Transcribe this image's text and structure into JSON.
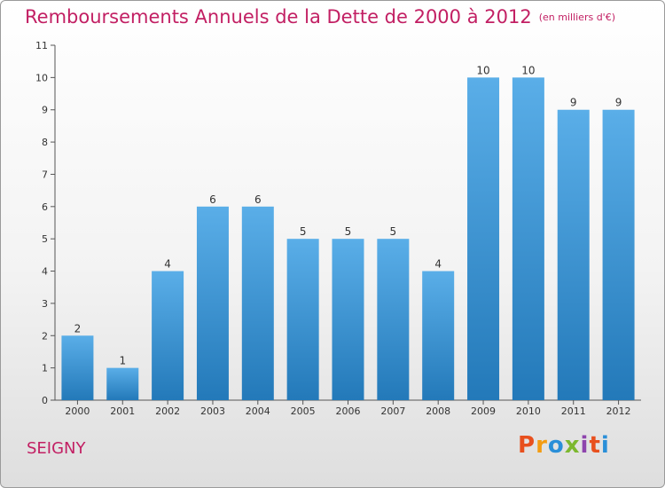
{
  "title": "Remboursements Annuels de la Dette de 2000 à 2012",
  "unit": "(en milliers d'€)",
  "commune": "SEIGNY",
  "logo": {
    "text": "Proxiti",
    "colors": [
      "#e8501e",
      "#f39c12",
      "#2a8fd8",
      "#7cb82f",
      "#8e44ad",
      "#e8501e",
      "#2a8fd8"
    ]
  },
  "colors": {
    "title": "#c21f63",
    "bar_top": "#5aaee8",
    "bar_bottom": "#2379b9"
  },
  "chart_data": {
    "type": "bar",
    "categories": [
      "2000",
      "2001",
      "2002",
      "2003",
      "2004",
      "2005",
      "2006",
      "2007",
      "2008",
      "2009",
      "2010",
      "2011",
      "2012"
    ],
    "values": [
      2,
      1,
      4,
      6,
      6,
      5,
      5,
      5,
      4,
      10,
      10,
      9,
      9
    ],
    "title": "Remboursements Annuels de la Dette de 2000 à 2012",
    "ylabel": "",
    "xlabel": "",
    "ylim": [
      0,
      11
    ],
    "yticks": [
      0,
      1,
      2,
      3,
      4,
      5,
      6,
      7,
      8,
      9,
      10,
      11
    ],
    "grid": false,
    "legend": "none",
    "data_labels": true
  }
}
